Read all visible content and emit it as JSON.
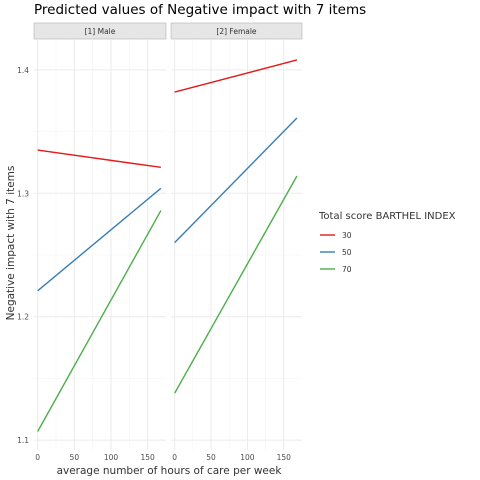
{
  "chart_data": {
    "type": "line",
    "title": "Predicted values of Negative impact with 7 items",
    "xlabel": "average number of hours of care per week",
    "ylabel": "Negative impact with 7 items",
    "xlim": [
      -5,
      175
    ],
    "ylim": [
      1.092,
      1.425
    ],
    "x_ticks": [
      0,
      50,
      100,
      150
    ],
    "x_tick_labels": [
      "0",
      "50",
      "100",
      "150"
    ],
    "y_ticks": [
      1.1,
      1.2,
      1.3,
      1.4
    ],
    "y_tick_labels": [
      "1.1",
      "1.2",
      "1.3",
      "1.4"
    ],
    "grid": true,
    "legend": {
      "title": "Total score BARTHEL INDEX",
      "position": "right",
      "entries": [
        "30",
        "50",
        "70"
      ]
    },
    "colors": {
      "30": "#e41a1c",
      "50": "#377eb8",
      "70": "#4daf4a"
    },
    "panels": [
      {
        "label": "[1] Male",
        "series": [
          {
            "name": "30",
            "x": [
              0,
              168
            ],
            "y": [
              1.335,
              1.321
            ]
          },
          {
            "name": "50",
            "x": [
              0,
              168
            ],
            "y": [
              1.221,
              1.304
            ]
          },
          {
            "name": "70",
            "x": [
              0,
              168
            ],
            "y": [
              1.107,
              1.286
            ]
          }
        ]
      },
      {
        "label": "[2] Female",
        "series": [
          {
            "name": "30",
            "x": [
              0,
              168
            ],
            "y": [
              1.382,
              1.408
            ]
          },
          {
            "name": "50",
            "x": [
              0,
              168
            ],
            "y": [
              1.26,
              1.361
            ]
          },
          {
            "name": "70",
            "x": [
              0,
              168
            ],
            "y": [
              1.138,
              1.314
            ]
          }
        ]
      }
    ]
  }
}
